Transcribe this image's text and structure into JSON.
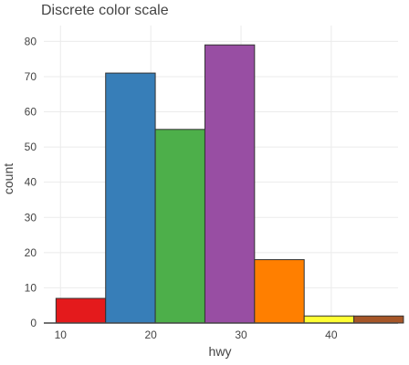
{
  "chart_data": {
    "type": "bar",
    "title": "Discrete color scale",
    "xlabel": "hwy",
    "ylabel": "count",
    "x_ticks": [
      10,
      20,
      30,
      40
    ],
    "y_ticks": [
      0,
      10,
      20,
      30,
      40,
      50,
      60,
      70,
      80
    ],
    "xlim": [
      8.15,
      47.4
    ],
    "ylim": [
      0,
      84.5
    ],
    "grid": true,
    "bins": [
      {
        "x0": 9.5,
        "x1": 15,
        "count": 7,
        "color": "#e41a1c"
      },
      {
        "x0": 15,
        "x1": 20.5,
        "count": 71,
        "color": "#377eb8"
      },
      {
        "x0": 20.5,
        "x1": 26,
        "count": 55,
        "color": "#4daf4a"
      },
      {
        "x0": 26,
        "x1": 31.5,
        "count": 79,
        "color": "#984ea3"
      },
      {
        "x0": 31.5,
        "x1": 37,
        "count": 18,
        "color": "#ff7f00"
      },
      {
        "x0": 37,
        "x1": 42.5,
        "count": 2,
        "color": "#ffff33"
      },
      {
        "x0": 42.5,
        "x1": 48,
        "count": 2,
        "color": "#a65628"
      }
    ],
    "bar_outline_color": "#333333",
    "grid_color": "#ebebeb",
    "axis_line_color": "#444444"
  }
}
